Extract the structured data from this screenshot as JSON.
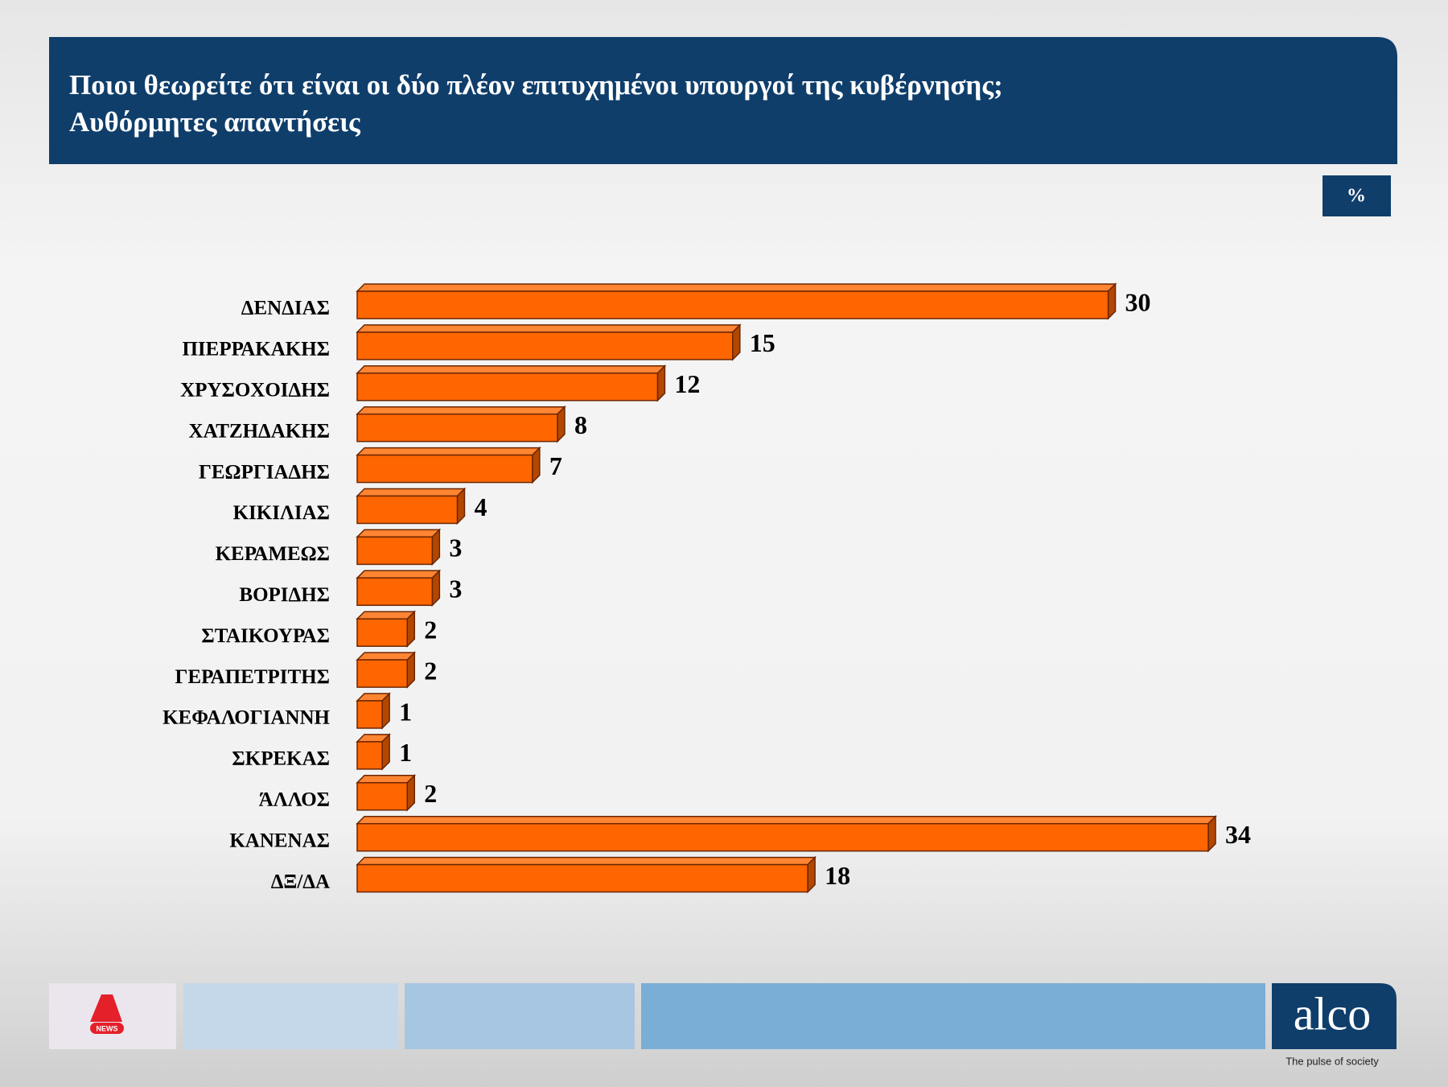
{
  "chart_data": {
    "type": "bar3d_horizontal",
    "title": "Ποιοι θεωρείτε ότι είναι οι δύο πλέον επιτυχημένοι υπουργοί της κυβέρνησης;",
    "subtitle": "Αυθόρμητες απαντήσεις",
    "unit_label": "%",
    "categories": [
      "ΔΕΝΔΙΑΣ",
      "ΠΙΕΡΡΑΚΑΚΗΣ",
      "ΧΡΥΣΟΧΟΙΔΗΣ",
      "ΧΑΤΖΗΔΑΚΗΣ",
      "ΓΕΩΡΓΙΑΔΗΣ",
      "ΚΙΚΙΛΙΑΣ",
      "ΚΕΡΑΜΕΩΣ",
      "ΒΟΡΙΔΗΣ",
      "ΣΤΑΙΚΟΥΡΑΣ",
      "ΓΕΡΑΠΕΤΡΙΤΗΣ",
      "ΚΕΦΑΛΟΓΙΑΝΝΗ",
      "ΣΚΡΕΚΑΣ",
      "ΆΛΛΟΣ",
      "ΚΑΝΕΝΑΣ",
      "ΔΞ/ΔΑ"
    ],
    "values": [
      30,
      15,
      12,
      8,
      7,
      4,
      3,
      3,
      2,
      2,
      1,
      1,
      2,
      34,
      18
    ],
    "color": "#ff6600"
  },
  "footer": {
    "logo_left": "NEWS",
    "brand": "alco",
    "tagline": "The pulse of society"
  }
}
